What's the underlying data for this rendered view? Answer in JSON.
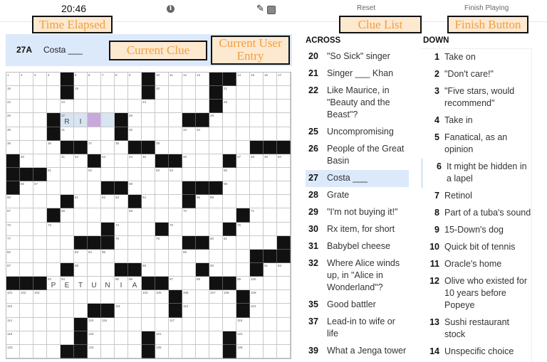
{
  "header": {
    "timer": "20:46",
    "info_icon": "info-icon",
    "pencil_icon": "pencil-icon",
    "reset_label": "Reset",
    "finish_label": "Finish Playing"
  },
  "current_clue": {
    "number": "27A",
    "text": "Costa ___"
  },
  "grid": {
    "rows": [
      "....#.....#....##....",
      "....#.....#....#.....",
      "...............#.....",
      "...#....#....##......",
      "...#....#............",
      "....##...##.......###",
      "#.....#....##...#....",
      "###..................",
      "#......##....###.....",
      "....#....#...#.......",
      "...#.............#...",
      ".......#...#....#....",
      ".....###.....##.....#",
      "..................###",
      "....#...##....#...#..",
      "###.......##...##....",
      "............#....#...",
      "......##....#....#...",
      ".....#...............",
      ".....#....#.....#....",
      "....##....#.....#...."
    ],
    "entries": [
      {
        "row": 3,
        "col": 4,
        "letter": "R"
      },
      {
        "row": 3,
        "col": 5,
        "letter": "I"
      },
      {
        "row": 15,
        "col": 3,
        "letter": "P"
      },
      {
        "row": 15,
        "col": 4,
        "letter": "E"
      },
      {
        "row": 15,
        "col": 5,
        "letter": "T"
      },
      {
        "row": 15,
        "col": 6,
        "letter": "U"
      },
      {
        "row": 15,
        "col": 7,
        "letter": "N"
      },
      {
        "row": 15,
        "col": 8,
        "letter": "I"
      },
      {
        "row": 15,
        "col": 9,
        "letter": "A"
      }
    ],
    "highlight": {
      "row": 3,
      "cols": [
        4,
        5,
        6,
        7
      ],
      "cursor_col": 6
    },
    "colors": {
      "highlight": "#d7e4f2",
      "cursor": "#c9a9dc",
      "black": "#111111"
    }
  },
  "across": {
    "title": "ACROSS",
    "items": [
      {
        "num": "20",
        "text": "\"So Sick\" singer"
      },
      {
        "num": "21",
        "text": "Singer ___ Khan"
      },
      {
        "num": "22",
        "text": "Like Maurice, in \"Beauty and the Beast\"?"
      },
      {
        "num": "25",
        "text": "Uncompromising"
      },
      {
        "num": "26",
        "text": "People of the Great Basin"
      },
      {
        "num": "27",
        "text": "Costa ___",
        "selected": true
      },
      {
        "num": "28",
        "text": "Grate"
      },
      {
        "num": "29",
        "text": "\"I'm not buying it!\""
      },
      {
        "num": "30",
        "text": "Rx item, for short"
      },
      {
        "num": "31",
        "text": "Babybel cheese"
      },
      {
        "num": "32",
        "text": "Where Alice winds up, in \"Alice in Wonderland\"?"
      },
      {
        "num": "35",
        "text": "Good battler"
      },
      {
        "num": "37",
        "text": "Lead-in to wife or life"
      },
      {
        "num": "39",
        "text": "What a Jenga tower"
      }
    ]
  },
  "down": {
    "title": "DOWN",
    "items": [
      {
        "num": "1",
        "text": "Take on"
      },
      {
        "num": "2",
        "text": "\"Don't care!\""
      },
      {
        "num": "3",
        "text": "\"Five stars, would recommend\""
      },
      {
        "num": "4",
        "text": "Take in"
      },
      {
        "num": "5",
        "text": "Fanatical, as an opinion"
      },
      {
        "num": "6",
        "text": "It might be hidden in a lapel",
        "related": true
      },
      {
        "num": "7",
        "text": "Retinol"
      },
      {
        "num": "8",
        "text": "Part of a tuba's sound"
      },
      {
        "num": "9",
        "text": "15-Down's dog"
      },
      {
        "num": "10",
        "text": "Quick bit of tennis"
      },
      {
        "num": "11",
        "text": "Oracle's home"
      },
      {
        "num": "12",
        "text": "Olive who existed for 10 years before Popeye"
      },
      {
        "num": "13",
        "text": "Sushi restaurant stock"
      },
      {
        "num": "14",
        "text": "Unspecific choice"
      }
    ]
  },
  "annotations": {
    "time": "Time Elapsed",
    "clue": "Current Clue",
    "entry": "Current User Entry",
    "list": "Clue List",
    "finish": "Finish Button"
  }
}
